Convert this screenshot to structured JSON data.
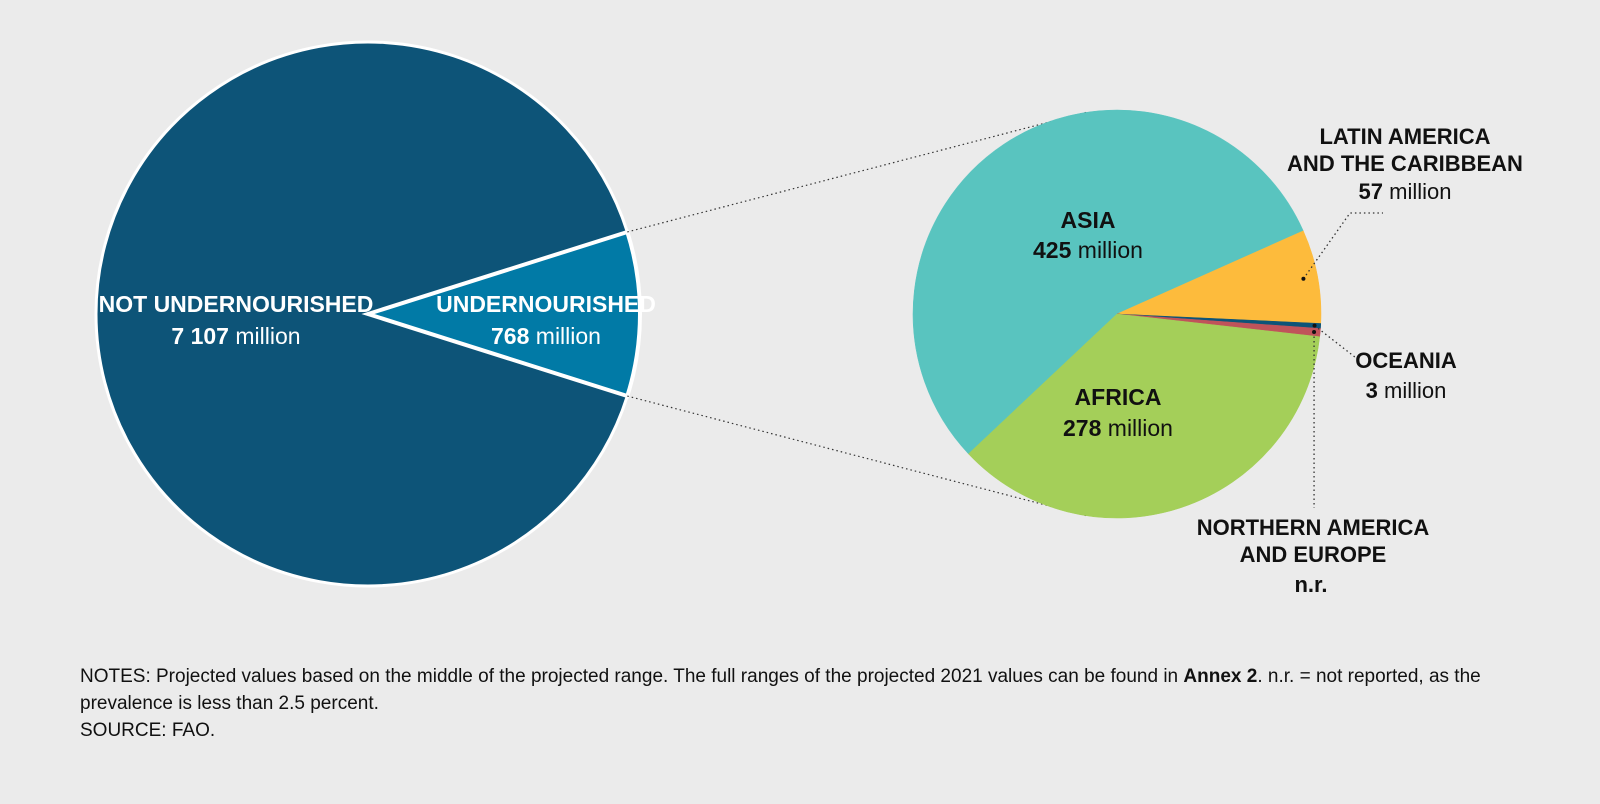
{
  "chart_data": [
    {
      "type": "pie",
      "slices": [
        {
          "label": "NOT UNDERNOURISHED",
          "value": 7107,
          "value_text": "7 107",
          "unit": "million",
          "color": "#0d5478"
        },
        {
          "label": "UNDERNOURISHED",
          "value": 768,
          "value_text": "768",
          "unit": "million",
          "color": "#017aa6"
        }
      ]
    },
    {
      "type": "pie",
      "slices": [
        {
          "label": "ASIA",
          "value": 425,
          "value_text": "425",
          "unit": "million",
          "color": "#59c4bf"
        },
        {
          "label": "LATIN AMERICA AND THE CARIBBEAN",
          "label_lines": [
            "LATIN AMERICA",
            "AND THE CARIBBEAN"
          ],
          "value": 57,
          "value_text": "57",
          "unit": "million",
          "color": "#fdbb3c"
        },
        {
          "label": "OCEANIA",
          "value": 3,
          "value_text": "3",
          "unit": "million",
          "color": "#0d5478"
        },
        {
          "label": "NORTHERN AMERICA AND EUROPE",
          "label_lines": [
            "NORTHERN AMERICA",
            "AND EUROPE"
          ],
          "value": 5,
          "value_text": "n.r.",
          "color": "#c0535a"
        },
        {
          "label": "AFRICA",
          "value": 278,
          "value_text": "278",
          "unit": "million",
          "color": "#a4cf59"
        }
      ]
    }
  ],
  "notes": {
    "prefix": "NOTES: Projected values based on the middle of the projected range. The full ranges of the projected 2021 values can be found in ",
    "bold": "Annex 2",
    "suffix": ". n.r. = not reported, as the prevalence is less than 2.5 percent.",
    "source": "SOURCE: FAO."
  }
}
